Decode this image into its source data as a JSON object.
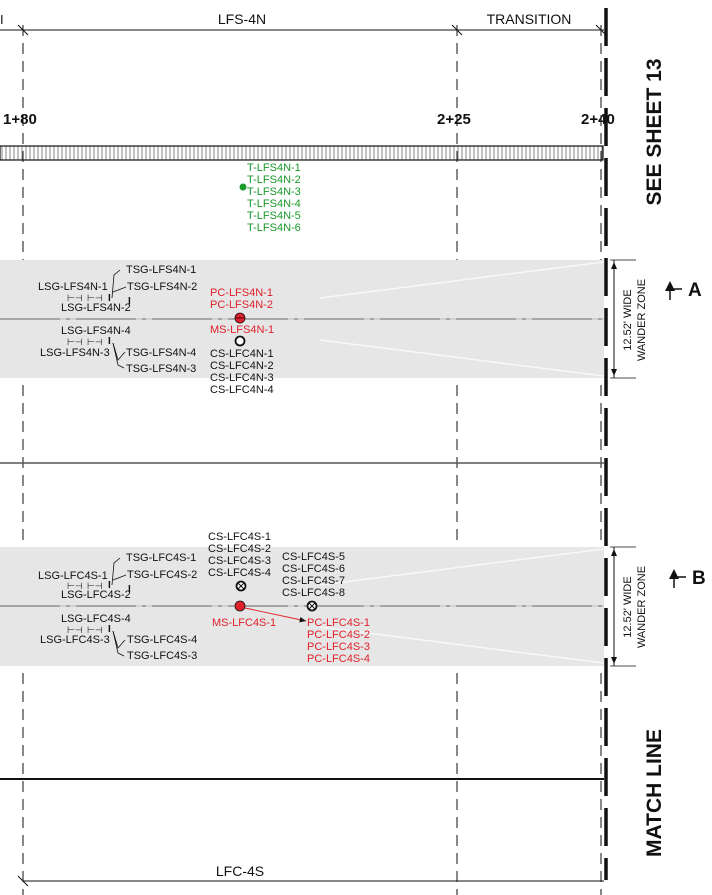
{
  "sections": {
    "top_left_partial": "I",
    "lfs4n": "LFS-4N",
    "transition": "TRANSITION",
    "lfc4s": "LFC-4S"
  },
  "stations": {
    "s180": "1+80",
    "s225": "2+25",
    "s240": "2+40"
  },
  "match_labels": {
    "see_sheet": "SEE SHEET 13",
    "match_line": "MATCH LINE"
  },
  "sections_cut": {
    "a": "A",
    "b": "B"
  },
  "wander": {
    "line1": "12.52' WIDE",
    "line2": "WANDER ZONE"
  },
  "thermo_labels": [
    "T-LFS4N-1",
    "T-LFS4N-2",
    "T-LFS4N-3",
    "T-LFS4N-4",
    "T-LFS4N-5",
    "T-LFS4N-6"
  ],
  "lane_a": {
    "tsg_upper": [
      "TSG-LFS4N-1",
      "TSG-LFS4N-2"
    ],
    "lsg_upper": [
      "LSG-LFS4N-1",
      "LSG-LFS4N-2"
    ],
    "lsg_lower": [
      "LSG-LFS4N-4",
      "LSG-LFS4N-3"
    ],
    "tsg_lower": [
      "TSG-LFS4N-4",
      "TSG-LFS4N-3"
    ],
    "pc": [
      "PC-LFS4N-1",
      "PC-LFS4N-2"
    ],
    "ms": "MS-LFS4N-1",
    "cs": [
      "CS-LFC4N-1",
      "CS-LFC4N-2",
      "CS-LFC4N-3",
      "CS-LFC4N-4"
    ]
  },
  "lane_b": {
    "tsg_upper": [
      "TSG-LFC4S-1",
      "TSG-LFC4S-2"
    ],
    "lsg_upper": [
      "LSG-LFC4S-1",
      "LSG-LFC4S-2"
    ],
    "lsg_lower": [
      "LSG-LFC4S-4",
      "LSG-LFC4S-3"
    ],
    "tsg_lower": [
      "TSG-LFC4S-4",
      "TSG-LFC4S-3"
    ],
    "cs_left": [
      "CS-LFC4S-1",
      "CS-LFC4S-2",
      "CS-LFC4S-3",
      "CS-LFC4S-4"
    ],
    "cs_right": [
      "CS-LFC4S-5",
      "CS-LFC4S-6",
      "CS-LFC4S-7",
      "CS-LFC4S-8"
    ],
    "ms": "MS-LFC4S-1",
    "pc": [
      "PC-LFC4S-1",
      "PC-LFC4S-2",
      "PC-LFC4S-3",
      "PC-LFC4S-4"
    ]
  },
  "colors": {
    "thermo_green": "#1a9a2a",
    "pressure_red": "#e0202a",
    "lane_gray": "#e6e6e6",
    "ink": "#111111"
  }
}
